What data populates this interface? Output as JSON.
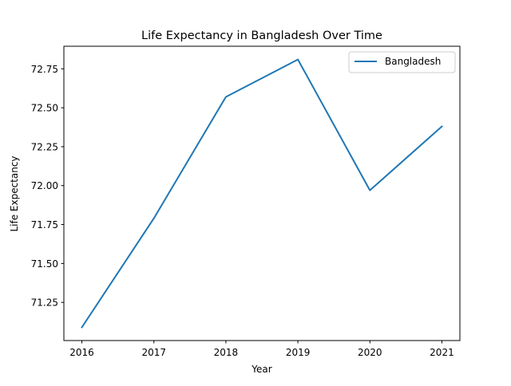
{
  "chart_data": {
    "type": "line",
    "title": "Life Expectancy in Bangladesh Over Time",
    "xlabel": "Year",
    "ylabel": "Life Expectancy",
    "x": [
      2016,
      2017,
      2018,
      2019,
      2020,
      2021
    ],
    "x_tick_labels": [
      "2016",
      "2017",
      "2018",
      "2019",
      "2020",
      "2021"
    ],
    "y_ticks": [
      71.25,
      71.5,
      71.75,
      72.0,
      72.25,
      72.5,
      72.75
    ],
    "y_tick_labels": [
      "71.25",
      "71.50",
      "71.75",
      "72.00",
      "72.25",
      "72.50",
      "72.75"
    ],
    "xlim": [
      2015.75,
      2021.25
    ],
    "ylim": [
      71.005,
      72.895
    ],
    "grid": false,
    "legend_position": "upper right",
    "series": [
      {
        "name": "Bangladesh",
        "color": "#1f77b4",
        "values": [
          71.09,
          71.79,
          72.57,
          72.81,
          71.97,
          72.38
        ]
      }
    ]
  }
}
